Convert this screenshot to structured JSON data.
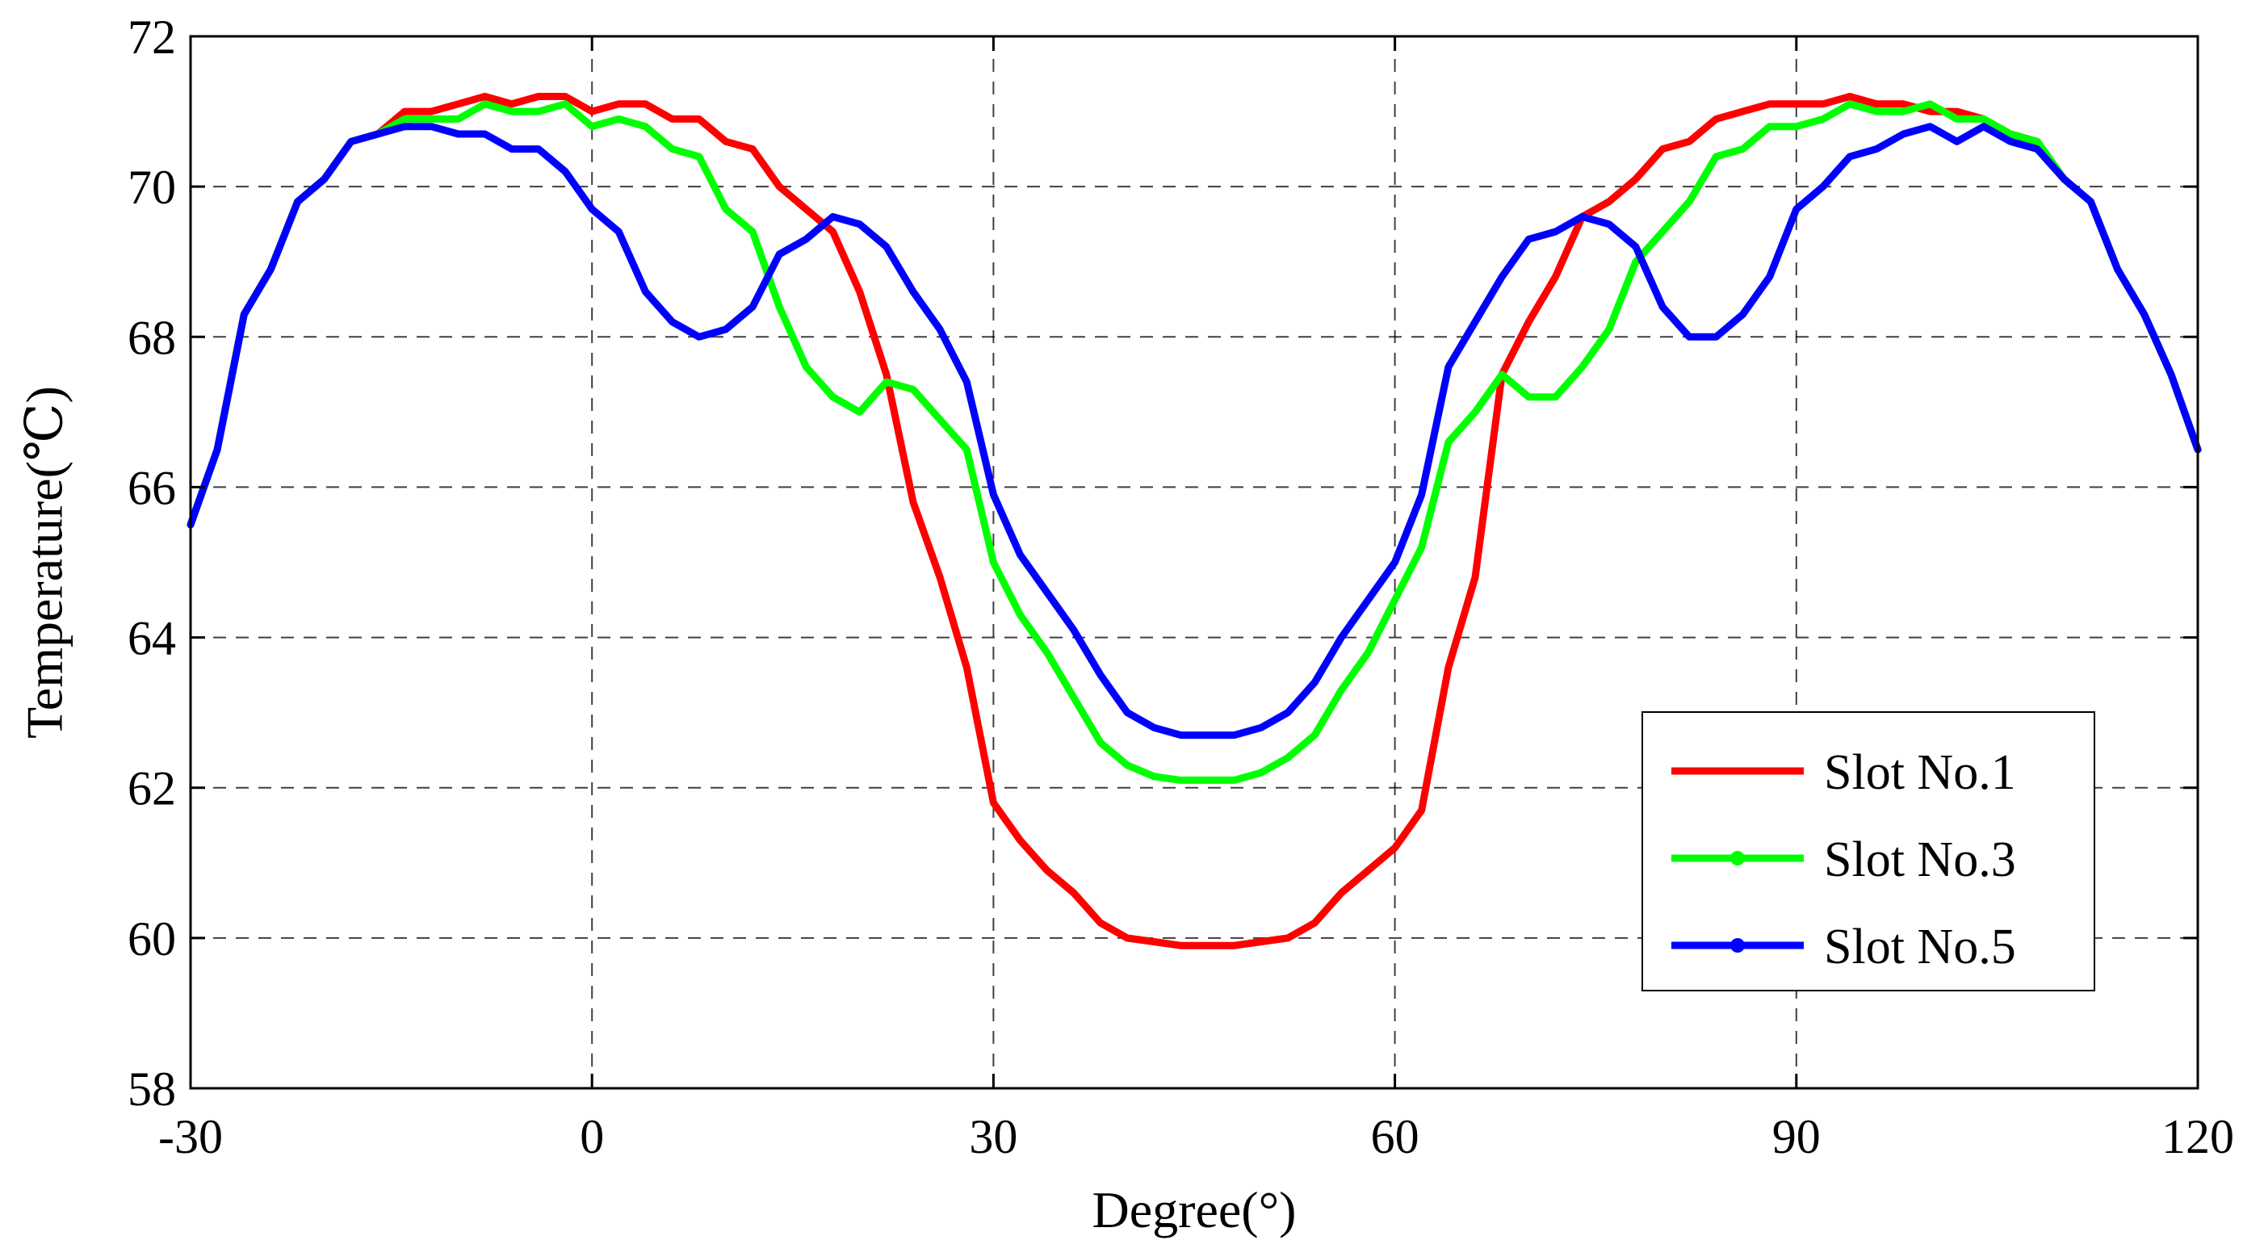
{
  "chart_data": {
    "type": "line",
    "title": "",
    "xlabel": "Degree(°)",
    "ylabel": "Temperature(℃)",
    "xlim": [
      -30,
      120
    ],
    "ylim": [
      58,
      72
    ],
    "xticks": [
      -30,
      0,
      30,
      60,
      90,
      120
    ],
    "yticks": [
      58,
      60,
      62,
      64,
      66,
      68,
      70,
      72
    ],
    "xtick_labels": [
      "-30",
      "0",
      "30",
      "60",
      "90",
      "120"
    ],
    "ytick_labels": [
      "58",
      "60",
      "62",
      "64",
      "66",
      "68",
      "70",
      "72"
    ],
    "grid": true,
    "legend_position": "bottom-right",
    "series": [
      {
        "name": "Slot No.1",
        "color": "#ff0000",
        "x": [
          -30,
          -28,
          -26,
          -24,
          -22,
          -20,
          -18,
          -16,
          -14,
          -12,
          -10,
          -8,
          -6,
          -4,
          -2,
          0,
          2,
          4,
          6,
          8,
          10,
          12,
          14,
          16,
          18,
          20,
          22,
          24,
          26,
          28,
          30,
          32,
          34,
          36,
          38,
          40,
          42,
          44,
          46,
          48,
          50,
          52,
          54,
          56,
          58,
          60,
          62,
          64,
          66,
          68,
          70,
          72,
          74,
          76,
          78,
          80,
          82,
          84,
          86,
          88,
          90,
          92,
          94,
          96,
          98,
          100,
          102,
          104,
          106,
          108,
          110,
          112,
          114,
          116,
          118,
          120
        ],
        "values": [
          65.5,
          66.5,
          68.3,
          68.9,
          69.8,
          70.1,
          70.6,
          70.7,
          71.0,
          71.0,
          71.1,
          71.2,
          71.1,
          71.2,
          71.2,
          71.0,
          71.1,
          71.1,
          70.9,
          70.9,
          70.6,
          70.5,
          70.0,
          69.7,
          69.4,
          68.6,
          67.5,
          65.8,
          64.8,
          63.6,
          61.8,
          61.3,
          60.9,
          60.6,
          60.2,
          60.0,
          59.95,
          59.9,
          59.9,
          59.9,
          59.95,
          60.0,
          60.2,
          60.6,
          60.9,
          61.2,
          61.7,
          63.6,
          64.8,
          67.5,
          68.2,
          68.8,
          69.6,
          69.8,
          70.1,
          70.5,
          70.6,
          70.9,
          71.0,
          71.1,
          71.1,
          71.1,
          71.2,
          71.1,
          71.1,
          71.0,
          71.0,
          70.9,
          70.7,
          70.6,
          70.1,
          69.8,
          68.9,
          68.3,
          67.5,
          66.5
        ]
      },
      {
        "name": "Slot No.3",
        "color": "#00ff00",
        "x": [
          -30,
          -28,
          -26,
          -24,
          -22,
          -20,
          -18,
          -16,
          -14,
          -12,
          -10,
          -8,
          -6,
          -4,
          -2,
          0,
          2,
          4,
          6,
          8,
          10,
          12,
          14,
          16,
          18,
          20,
          22,
          24,
          26,
          28,
          30,
          32,
          34,
          36,
          38,
          40,
          42,
          44,
          46,
          48,
          50,
          52,
          54,
          56,
          58,
          60,
          62,
          64,
          66,
          68,
          70,
          72,
          74,
          76,
          78,
          80,
          82,
          84,
          86,
          88,
          90,
          92,
          94,
          96,
          98,
          100,
          102,
          104,
          106,
          108,
          110,
          112,
          114,
          116,
          118,
          120
        ],
        "values": [
          65.5,
          66.5,
          68.3,
          68.9,
          69.8,
          70.1,
          70.6,
          70.7,
          70.9,
          70.9,
          70.9,
          71.1,
          71.0,
          71.0,
          71.1,
          70.8,
          70.9,
          70.8,
          70.5,
          70.4,
          69.7,
          69.4,
          68.4,
          67.6,
          67.2,
          67.0,
          67.4,
          67.3,
          66.9,
          66.5,
          65.0,
          64.3,
          63.8,
          63.2,
          62.6,
          62.3,
          62.15,
          62.1,
          62.1,
          62.1,
          62.2,
          62.4,
          62.7,
          63.3,
          63.8,
          64.5,
          65.2,
          66.6,
          67.0,
          67.5,
          67.2,
          67.2,
          67.6,
          68.1,
          69.0,
          69.4,
          69.8,
          70.4,
          70.5,
          70.8,
          70.8,
          70.9,
          71.1,
          71.0,
          71.0,
          71.1,
          70.9,
          70.9,
          70.7,
          70.6,
          70.1,
          69.8,
          68.9,
          68.3,
          67.5,
          66.5
        ]
      },
      {
        "name": "Slot No.5",
        "color": "#0000ff",
        "x": [
          -30,
          -28,
          -26,
          -24,
          -22,
          -20,
          -18,
          -16,
          -14,
          -12,
          -10,
          -8,
          -6,
          -4,
          -2,
          0,
          2,
          4,
          6,
          8,
          10,
          12,
          14,
          16,
          18,
          20,
          22,
          24,
          26,
          28,
          30,
          32,
          34,
          36,
          38,
          40,
          42,
          44,
          46,
          48,
          50,
          52,
          54,
          56,
          58,
          60,
          62,
          64,
          66,
          68,
          70,
          72,
          74,
          76,
          78,
          80,
          82,
          84,
          86,
          88,
          90,
          92,
          94,
          96,
          98,
          100,
          102,
          104,
          106,
          108,
          110,
          112,
          114,
          116,
          118,
          120
        ],
        "values": [
          65.5,
          66.5,
          68.3,
          68.9,
          69.8,
          70.1,
          70.6,
          70.7,
          70.8,
          70.8,
          70.7,
          70.7,
          70.5,
          70.5,
          70.2,
          69.7,
          69.4,
          68.6,
          68.2,
          68.0,
          68.1,
          68.4,
          69.1,
          69.3,
          69.6,
          69.5,
          69.2,
          68.6,
          68.1,
          67.4,
          65.9,
          65.1,
          64.6,
          64.1,
          63.5,
          63.0,
          62.8,
          62.7,
          62.7,
          62.7,
          62.8,
          63.0,
          63.4,
          64.0,
          64.5,
          65.0,
          65.9,
          67.6,
          68.2,
          68.8,
          69.3,
          69.4,
          69.6,
          69.5,
          69.2,
          68.4,
          68.0,
          68.0,
          68.3,
          68.8,
          69.7,
          70.0,
          70.4,
          70.5,
          70.7,
          70.8,
          70.6,
          70.8,
          70.6,
          70.5,
          70.1,
          69.8,
          68.9,
          68.3,
          67.5,
          66.5
        ]
      }
    ]
  }
}
